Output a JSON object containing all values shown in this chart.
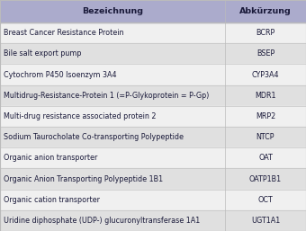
{
  "title_col1": "Bezeichnung",
  "title_col2": "Abkürzung",
  "rows": [
    [
      "Breast Cancer Resistance Protein",
      "BCRP"
    ],
    [
      "Bile salt export pump",
      "BSEP"
    ],
    [
      "Cytochrom P450 Isoenzym 3A4",
      "CYP3A4"
    ],
    [
      "Multidrug-Resistance-Protein 1 (=P-Glykoprotein = P-Gp)",
      "MDR1"
    ],
    [
      "Multi-drug resistance associated protein 2",
      "MRP2"
    ],
    [
      "Sodium Taurocholate Co-transporting Polypeptide",
      "NTCP"
    ],
    [
      "Organic anion transporter",
      "OAT"
    ],
    [
      "Organic Anion Transporting Polypeptide 1B1",
      "OATP1B1"
    ],
    [
      "Organic cation transporter",
      "OCT"
    ],
    [
      "Uridine diphosphate (UDP-) glucuronyltransferase 1A1",
      "UGT1A1"
    ]
  ],
  "header_bg": "#ababcc",
  "row_bg_light": "#f0f0f0",
  "row_bg_dark": "#e0e0e0",
  "header_text_color": "#1a1a3a",
  "row_text_color": "#1a1a3a",
  "header_fontsize": 6.8,
  "row_fontsize": 5.8,
  "border_color": "#bbbbbb",
  "col_split": 0.735,
  "fig_width": 3.4,
  "fig_height": 2.57,
  "dpi": 100
}
